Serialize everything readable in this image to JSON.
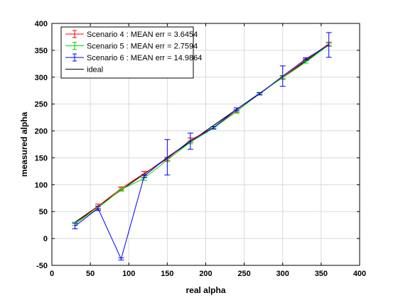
{
  "chart_data": {
    "type": "line",
    "xlabel": "real alpha",
    "ylabel": "measured alpha",
    "xlim": [
      0,
      400
    ],
    "ylim": [
      -50,
      400
    ],
    "xticks": [
      0,
      50,
      100,
      150,
      200,
      250,
      300,
      350,
      400
    ],
    "yticks": [
      -50,
      0,
      50,
      100,
      150,
      200,
      250,
      300,
      350,
      400
    ],
    "grid": true,
    "legend_position": "top-left",
    "x": [
      30,
      60,
      90,
      120,
      150,
      180,
      210,
      240,
      270,
      300,
      330,
      360
    ],
    "series": [
      {
        "name": "Scenario 4 : MEAN err = 3.6454",
        "color": "#ff0000",
        "values": [
          27,
          60,
          93,
          121,
          148,
          183,
          206,
          237,
          269,
          300,
          332,
          362
        ],
        "err": [
          3,
          4,
          3,
          4,
          3,
          4,
          2,
          3,
          2,
          3,
          2,
          3
        ]
      },
      {
        "name": "Scenario 5 : MEAN err = 2.7594",
        "color": "#00dd00",
        "values": [
          27,
          57,
          91,
          112,
          146,
          179,
          205,
          236,
          270,
          299,
          328,
          360
        ],
        "err": [
          3,
          3,
          3,
          4,
          3,
          3,
          2,
          3,
          2,
          3,
          2,
          3
        ]
      },
      {
        "name": "Scenario 6 : MEAN err = 14.9864",
        "color": "#0000ff",
        "values": [
          23,
          56,
          -38,
          116,
          151,
          181,
          206,
          240,
          269,
          302,
          334,
          360
        ],
        "err": [
          5,
          4,
          2,
          3,
          33,
          15,
          2,
          3,
          2,
          19,
          2,
          23
        ]
      },
      {
        "name": "ideal",
        "color": "#000000",
        "x": [
          30,
          360
        ],
        "values": [
          30,
          360
        ]
      }
    ]
  }
}
